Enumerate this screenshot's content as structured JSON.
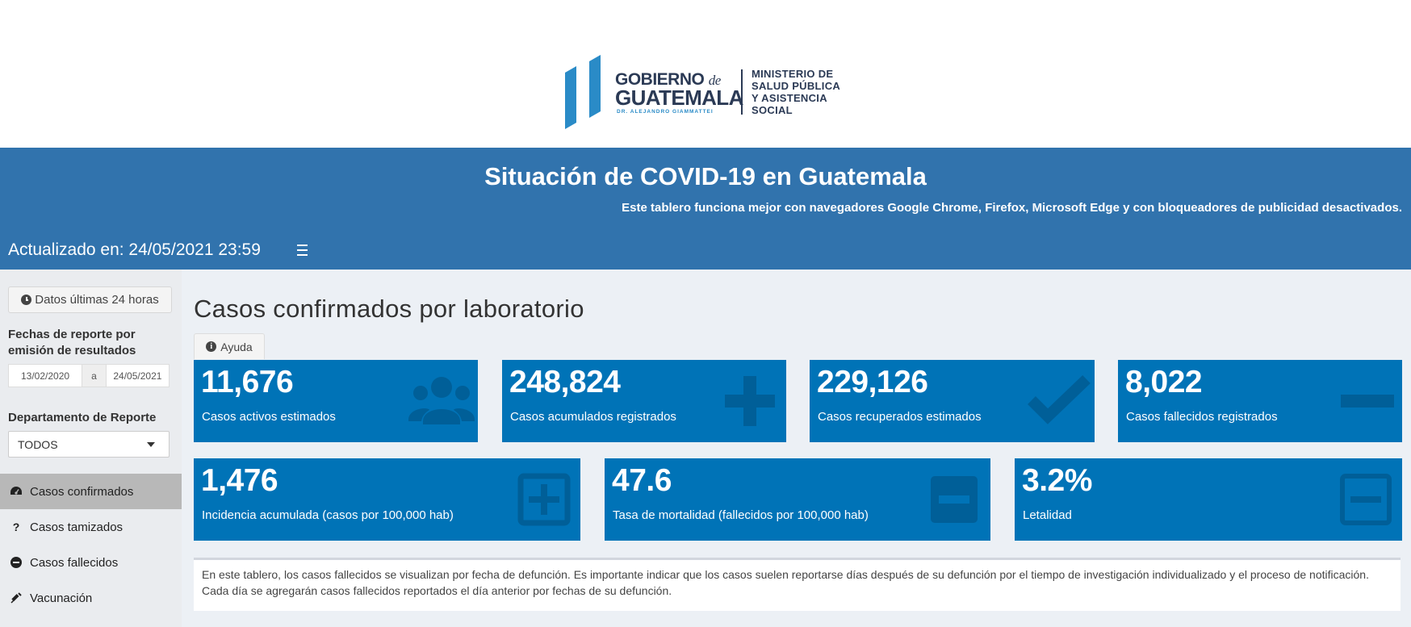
{
  "logo": {
    "line1": "GOBIERNO",
    "line1_de": "de",
    "line2": "GUATEMALA",
    "president": "DR. ALEJANDRO GIAMMATTEI",
    "ministry": [
      "MINISTERIO DE",
      "SALUD PÚBLICA",
      "Y ASISTENCIA",
      "SOCIAL"
    ]
  },
  "header": {
    "title": "Situación de COVID-19 en Guatemala",
    "browser_note": "Este tablero funciona mejor con navegadores Google Chrome, Firefox, Microsoft Edge y con bloqueadores de publicidad desactivados.",
    "updated": "Actualizado en: 24/05/2021 23:59"
  },
  "sidebar": {
    "btn_24h": "Datos últimas 24 horas",
    "dates_label": "Fechas de reporte por emisión de resultados",
    "date_from": "13/02/2020",
    "date_sep": "a",
    "date_to": "24/05/2021",
    "dept_label": "Departamento de Reporte",
    "dept_value": "TODOS",
    "nav": [
      {
        "label": "Casos confirmados",
        "icon": "dashboard-icon",
        "active": true
      },
      {
        "label": "Casos tamizados",
        "icon": "question-icon",
        "active": false
      },
      {
        "label": "Casos fallecidos",
        "icon": "minus-circle-icon",
        "active": false
      },
      {
        "label": "Vacunación",
        "icon": "syringe-icon",
        "active": false
      }
    ]
  },
  "main": {
    "heading": "Casos confirmados por laboratorio",
    "help": "Ayuda",
    "boxes": [
      {
        "value": "11,676",
        "label": "Casos activos estimados",
        "icon": "users-icon"
      },
      {
        "value": "248,824",
        "label": "Casos acumulados registrados",
        "icon": "plus-icon"
      },
      {
        "value": "229,126",
        "label": "Casos recuperados estimados",
        "icon": "check-icon"
      },
      {
        "value": "8,022",
        "label": "Casos fallecidos registrados",
        "icon": "minus-icon"
      },
      {
        "value": "1,476",
        "label": "Incidencia acumulada (casos por 100,000 hab)",
        "icon": "plus-square-icon"
      },
      {
        "value": "47.6",
        "label": "Tasa de mortalidad (fallecidos por 100,000 hab)",
        "icon": "minus-square-icon"
      },
      {
        "value": "3.2%",
        "label": "Letalidad",
        "icon": "minus-square-outline-icon"
      }
    ],
    "notice": "En este tablero, los casos fallecidos se visualizan por fecha de defunción. Es importante indicar que los casos suelen reportarse días después de su defunción por el tiempo de investigación individualizado y el proceso de notificación. Cada día se agregarán casos fallecidos reportados el día anterior por fechas de su defunción."
  },
  "colors": {
    "band": "#3173ad",
    "box": "#0073b7",
    "sidebar": "#eaecef",
    "content": "#ecf0f5"
  }
}
